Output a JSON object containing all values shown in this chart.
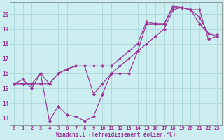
{
  "xlabel": "Windchill (Refroidissement éolien,°C)",
  "background_color": "#cceef0",
  "grid_color": "#aad8dc",
  "line_color": "#993399",
  "xlim": [
    -0.5,
    23.5
  ],
  "ylim": [
    12.5,
    20.8
  ],
  "yticks": [
    13,
    14,
    15,
    16,
    17,
    18,
    19,
    20
  ],
  "xticks": [
    0,
    1,
    2,
    3,
    4,
    5,
    6,
    7,
    8,
    9,
    10,
    11,
    12,
    13,
    14,
    15,
    16,
    17,
    18,
    19,
    20,
    21,
    22,
    23
  ],
  "line1_x": [
    0,
    1,
    2,
    3,
    4,
    5,
    6,
    7,
    8,
    9,
    10,
    11,
    12,
    13,
    14,
    15,
    16,
    17,
    18,
    19,
    20,
    21,
    22,
    23
  ],
  "line1_y": [
    15.3,
    15.6,
    15.0,
    16.0,
    12.8,
    13.8,
    13.2,
    13.1,
    12.8,
    13.1,
    14.6,
    16.0,
    16.0,
    16.0,
    17.5,
    19.35,
    19.35,
    19.35,
    20.45,
    20.45,
    20.3,
    19.8,
    18.7,
    18.65
  ],
  "line2_x": [
    0,
    1,
    2,
    3,
    4,
    5,
    6,
    7,
    8,
    9,
    10,
    11,
    12,
    13,
    14,
    15,
    16,
    17,
    18,
    19,
    20,
    21,
    22,
    23
  ],
  "line2_y": [
    15.3,
    15.3,
    15.3,
    15.3,
    15.3,
    16.0,
    16.3,
    16.5,
    16.5,
    14.6,
    15.3,
    16.0,
    16.5,
    17.0,
    17.5,
    18.0,
    18.5,
    19.0,
    20.3,
    20.45,
    20.3,
    20.3,
    18.3,
    18.5
  ],
  "line3_x": [
    0,
    1,
    2,
    3,
    4,
    5,
    6,
    7,
    8,
    9,
    10,
    11,
    12,
    13,
    14,
    15,
    16,
    17,
    18,
    19,
    20,
    21,
    22,
    23
  ],
  "line3_y": [
    15.3,
    15.3,
    15.3,
    16.0,
    15.3,
    16.0,
    16.3,
    16.5,
    16.5,
    16.5,
    16.5,
    16.5,
    17.0,
    17.5,
    18.0,
    19.5,
    19.35,
    19.35,
    20.55,
    20.45,
    20.3,
    19.35,
    18.7,
    18.5
  ]
}
